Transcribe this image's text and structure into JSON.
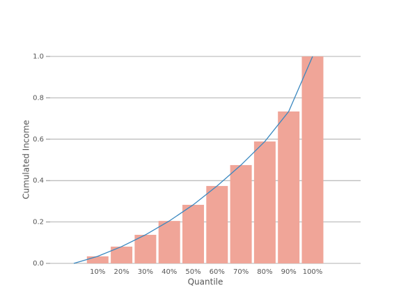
{
  "chart_data": {
    "type": "bar",
    "xlabel": "Quantile",
    "ylabel": "Cumulated Income",
    "categories": [
      null,
      "10%",
      "20%",
      "30%",
      "40%",
      "50%",
      "60%",
      "70%",
      "80%",
      "90%",
      "100%"
    ],
    "series": [
      {
        "type": "bar",
        "color": "#f0a598",
        "values": [
          null,
          0.034,
          0.081,
          0.138,
          0.205,
          0.283,
          0.374,
          0.475,
          0.589,
          0.734,
          1.0
        ]
      },
      {
        "type": "line",
        "color": "#3a88c0",
        "values": [
          0,
          0.034,
          0.081,
          0.138,
          0.205,
          0.283,
          0.374,
          0.475,
          0.589,
          0.734,
          1.0
        ]
      }
    ],
    "ylim": [
      0,
      1.0
    ],
    "yticks": [
      {
        "value": 0,
        "label": "0.0"
      },
      0.2,
      0.4,
      0.6,
      0.8,
      {
        "value": 1.0,
        "label": "1.0"
      }
    ],
    "grid": true
  }
}
